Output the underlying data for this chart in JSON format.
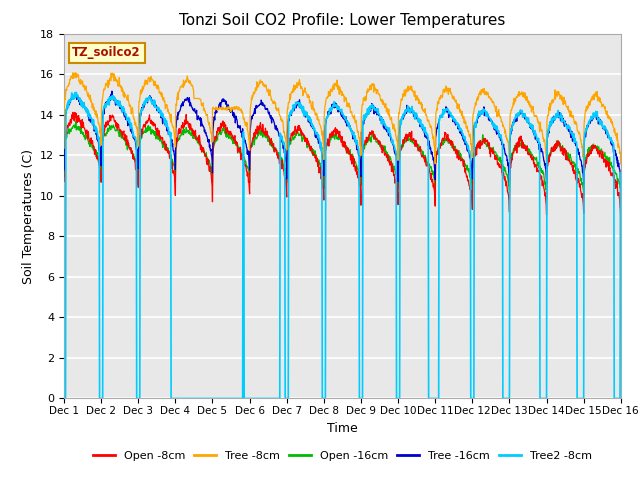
{
  "title": "Tonzi Soil CO2 Profile: Lower Temperatures",
  "xlabel": "Time",
  "ylabel": "Soil Temperatures (C)",
  "ylim": [
    0,
    18
  ],
  "yticks": [
    0,
    2,
    4,
    6,
    8,
    10,
    12,
    14,
    16,
    18
  ],
  "background_color": "#ffffff",
  "plot_bg_color": "#e8e8e8",
  "grid_color": "#ffffff",
  "legend_label": "TZ_soilco2",
  "series_colors": {
    "open8": "#ff0000",
    "tree8": "#ffa500",
    "open16": "#00bb00",
    "tree16": "#0000cc",
    "tree2_8": "#00ccff"
  },
  "series_labels": [
    "Open -8cm",
    "Tree -8cm",
    "Open -16cm",
    "Tree -16cm",
    "Tree2 -8cm"
  ],
  "x_start": 0,
  "x_end": 15,
  "xtick_positions": [
    0,
    1,
    2,
    3,
    4,
    5,
    6,
    7,
    8,
    9,
    10,
    11,
    12,
    13,
    14,
    15
  ],
  "xtick_labels": [
    "Dec 1",
    "Dec 2",
    "Dec 3",
    "Dec 4",
    "Dec 5",
    "Dec 6",
    "Dec 7",
    "Dec 8",
    "Dec 9",
    "Dec 10",
    "Dec 11",
    "Dec 12",
    "Dec 13",
    "Dec 14",
    "Dec 15",
    "Dec 16"
  ]
}
